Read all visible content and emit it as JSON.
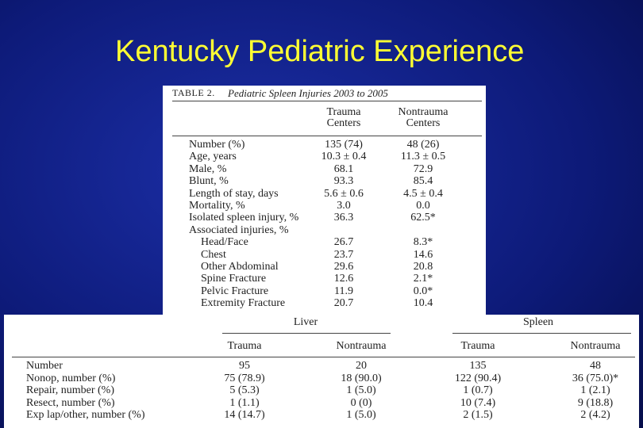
{
  "title": "Kentucky Pediatric Experience",
  "table1": {
    "label": "TABLE 2.",
    "caption": "Pediatric Spleen Injuries 2003 to 2005",
    "headers": [
      "Trauma Centers",
      "Nontrauma Centers"
    ],
    "rows": [
      [
        "Number (%)",
        "135 (74)",
        "48 (26)"
      ],
      [
        "Age, years",
        "10.3 ± 0.4",
        "11.3 ± 0.5"
      ],
      [
        "Male, %",
        "68.1",
        "72.9"
      ],
      [
        "Blunt, %",
        "93.3",
        "85.4"
      ],
      [
        "Length of stay, days",
        "5.6 ± 0.6",
        "4.5 ± 0.4"
      ],
      [
        "Mortality, %",
        "3.0",
        "0.0"
      ],
      [
        "Isolated spleen injury, %",
        "36.3",
        "62.5*"
      ],
      [
        "Associated injuries, %"
      ],
      [
        "Head/Face",
        "26.7",
        "8.3*"
      ],
      [
        "Chest",
        "23.7",
        "14.6"
      ],
      [
        "Other Abdominal",
        "29.6",
        "20.8"
      ],
      [
        "Spine Fracture",
        "12.6",
        "2.1*"
      ],
      [
        "Pelvic Fracture",
        "11.9",
        "0.0*"
      ],
      [
        "Extremity Fracture",
        "20.7",
        "10.4"
      ]
    ]
  },
  "table2": {
    "groups": [
      "Liver",
      "Spleen"
    ],
    "headers": [
      "Trauma",
      "Nontrauma",
      "Trauma",
      "Nontrauma"
    ],
    "rows": [
      [
        "Number",
        "95",
        "20",
        "135",
        "48"
      ],
      [
        "Nonop, number (%)",
        "75 (78.9)",
        "18 (90.0)",
        "122 (90.4)",
        "36 (75.0)*"
      ],
      [
        "Repair, number (%)",
        "5 (5.3)",
        "1 (5.0)",
        "1 (0.7)",
        "1 (2.1)"
      ],
      [
        "Resect, number (%)",
        "1 (1.1)",
        "0 (0)",
        "10 (7.4)",
        "9 (18.8)"
      ],
      [
        "Exp lap/other, number (%)",
        "14 (14.7)",
        "1 (5.0)",
        "2 (1.5)",
        "2 (4.2)"
      ]
    ]
  }
}
